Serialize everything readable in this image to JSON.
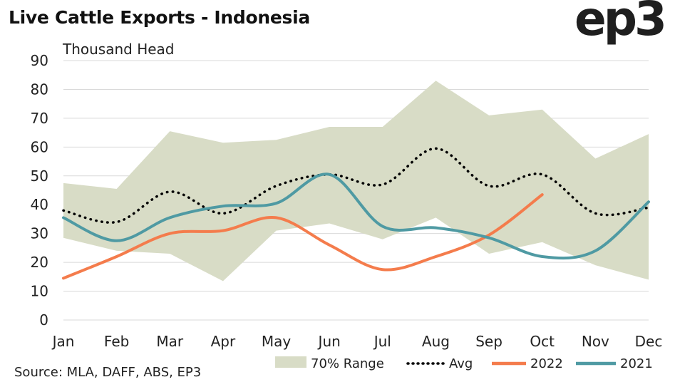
{
  "title": "Live Cattle Exports - Indonesia",
  "logo_text": "ep3",
  "source": "Source: MLA, DAFF, ABS, EP3",
  "chart_data": {
    "type": "line",
    "ylabel": "Thousand Head",
    "ylim": [
      0,
      90
    ],
    "yticks": [
      0,
      10,
      20,
      30,
      40,
      50,
      60,
      70,
      80,
      90
    ],
    "categories": [
      "Jan",
      "Feb",
      "Mar",
      "Apr",
      "May",
      "Jun",
      "Jul",
      "Aug",
      "Sep",
      "Oct",
      "Nov",
      "Dec"
    ],
    "grid": "horizontal",
    "legend_position": "bottom",
    "range_band": {
      "name": "70% Range",
      "color": "#d8dcc6",
      "upper": [
        47.5,
        45.5,
        65.5,
        61.5,
        62.5,
        67,
        67,
        83,
        71,
        73,
        56,
        64.5
      ],
      "lower": [
        28.5,
        24,
        23,
        13.5,
        31,
        33.5,
        28,
        35.5,
        23,
        27,
        19,
        14
      ]
    },
    "series": [
      {
        "name": "Avg",
        "color": "#000000",
        "style": "dotted",
        "values": [
          38,
          34,
          44.5,
          37,
          46.5,
          50.5,
          47,
          59.5,
          46.5,
          50.5,
          37,
          39
        ]
      },
      {
        "name": "2022",
        "color": "#f47c4c",
        "style": "solid",
        "values": [
          14.5,
          22,
          30,
          31,
          35.5,
          26,
          17.5,
          22,
          29.5,
          43.5,
          null,
          null
        ]
      },
      {
        "name": "2021",
        "color": "#4f9aa3",
        "style": "solid",
        "values": [
          35.5,
          27.5,
          35.5,
          39.5,
          40.5,
          50.5,
          32.5,
          32,
          28.5,
          22,
          24,
          41
        ]
      }
    ]
  }
}
